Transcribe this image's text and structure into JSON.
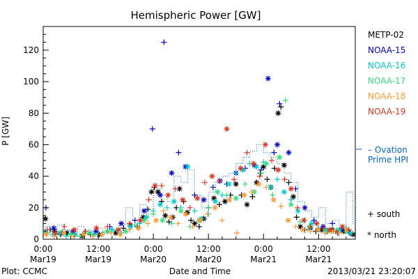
{
  "chart_data": {
    "type": "scatter",
    "title": "Hemispheric Power [GW]",
    "xlabel": "Date and Time",
    "ylabel": "P [GW]",
    "ylim": [
      0,
      135
    ],
    "xlim": [
      0,
      62
    ],
    "yticks": [
      0,
      20,
      40,
      60,
      80,
      100,
      120
    ],
    "xticks": [
      {
        "x": 0,
        "time": "0:00",
        "date": "Mar19"
      },
      {
        "x": 12,
        "time": "12:00",
        "date": "Mar19"
      },
      {
        "x": 24,
        "time": "0:00",
        "date": "Mar20"
      },
      {
        "x": 36,
        "time": "12:00",
        "date": "Mar20"
      },
      {
        "x": 48,
        "time": "0:00",
        "date": "Mar21"
      },
      {
        "x": 60,
        "time": "12:00",
        "date": "Mar21"
      }
    ],
    "legend_position": "right",
    "series": [
      {
        "name": "METP-02",
        "color": "#000000",
        "points": [
          [
            0.5,
            13
          ],
          [
            1.5,
            6
          ],
          [
            2.5,
            5
          ],
          [
            3.8,
            3
          ],
          [
            5.2,
            4
          ],
          [
            6.8,
            3
          ],
          [
            8.5,
            2
          ],
          [
            10.3,
            3
          ],
          [
            12.2,
            3
          ],
          [
            14.0,
            5
          ],
          [
            15.8,
            4
          ],
          [
            17.5,
            7
          ],
          [
            19.0,
            9
          ],
          [
            20.5,
            8
          ],
          [
            21.8,
            14
          ],
          [
            22.8,
            19
          ],
          [
            23.6,
            30
          ],
          [
            24.2,
            33
          ],
          [
            25.0,
            30
          ],
          [
            25.8,
            24
          ],
          [
            26.6,
            15
          ],
          [
            27.4,
            11
          ],
          [
            28.2,
            14
          ],
          [
            29.0,
            20
          ],
          [
            29.7,
            32
          ],
          [
            30.6,
            24
          ],
          [
            31.4,
            17
          ],
          [
            32.2,
            12
          ],
          [
            33.0,
            10
          ],
          [
            34.0,
            8
          ],
          [
            35.0,
            13
          ],
          [
            36.0,
            20
          ],
          [
            37.2,
            26
          ],
          [
            38.4,
            22
          ],
          [
            39.6,
            24
          ],
          [
            40.8,
            28
          ],
          [
            42.0,
            35
          ],
          [
            43.2,
            28
          ],
          [
            44.4,
            22
          ],
          [
            45.6,
            27
          ],
          [
            46.5,
            36
          ],
          [
            47.3,
            42
          ],
          [
            48.0,
            46
          ],
          [
            48.8,
            38
          ],
          [
            49.6,
            33
          ],
          [
            50.4,
            45
          ],
          [
            51.2,
            80
          ],
          [
            51.8,
            84
          ],
          [
            52.5,
            47
          ],
          [
            53.5,
            36
          ],
          [
            54.5,
            27
          ],
          [
            55.2,
            14
          ],
          [
            56.0,
            8
          ],
          [
            57.0,
            6
          ],
          [
            58.2,
            7
          ],
          [
            59.4,
            5
          ],
          [
            60.6,
            6
          ],
          [
            61.8,
            5
          ],
          [
            63.0,
            6
          ],
          [
            64.2,
            4
          ],
          [
            65.5,
            5
          ],
          [
            66.8,
            4
          ],
          [
            67.5,
            3
          ]
        ]
      },
      {
        "name": "NOAA-15",
        "color": "#0000cc",
        "points": [
          [
            0.6,
            20
          ],
          [
            2.3,
            7
          ],
          [
            4.0,
            4
          ],
          [
            6.5,
            5
          ],
          [
            9.0,
            4
          ],
          [
            11.5,
            5
          ],
          [
            14.5,
            8
          ],
          [
            17.0,
            10
          ],
          [
            20.0,
            12
          ],
          [
            22.0,
            18
          ],
          [
            23.8,
            70
          ],
          [
            25.5,
            28
          ],
          [
            26.3,
            125
          ],
          [
            28.0,
            42
          ],
          [
            29.5,
            55
          ],
          [
            31.0,
            46
          ],
          [
            33.0,
            28
          ],
          [
            35.0,
            25
          ],
          [
            37.0,
            33
          ],
          [
            38.5,
            37
          ],
          [
            40.0,
            35
          ],
          [
            42.0,
            42
          ],
          [
            44.0,
            45
          ],
          [
            46.0,
            47
          ],
          [
            47.5,
            44
          ],
          [
            49.0,
            102
          ],
          [
            50.3,
            55
          ],
          [
            51.0,
            60
          ],
          [
            51.5,
            86
          ],
          [
            53.5,
            55
          ],
          [
            55.0,
            32
          ],
          [
            57.0,
            20
          ],
          [
            59.0,
            12
          ],
          [
            61.0,
            8
          ],
          [
            63.0,
            10
          ],
          [
            65.0,
            6
          ],
          [
            66.5,
            5
          ]
        ]
      },
      {
        "name": "NOAA-16",
        "color": "#00cccc",
        "points": [
          [
            0.5,
            5
          ],
          [
            2.0,
            3
          ],
          [
            3.5,
            4
          ],
          [
            5.0,
            2
          ],
          [
            7.0,
            3
          ],
          [
            9.0,
            4
          ],
          [
            11.0,
            3
          ],
          [
            13.0,
            4
          ],
          [
            15.0,
            6
          ],
          [
            17.0,
            4
          ],
          [
            19.0,
            8
          ],
          [
            21.0,
            10
          ],
          [
            22.5,
            14
          ],
          [
            24.0,
            18
          ],
          [
            25.5,
            22
          ],
          [
            27.0,
            20
          ],
          [
            28.5,
            24
          ],
          [
            30.0,
            20
          ],
          [
            31.5,
            46
          ],
          [
            33.0,
            18
          ],
          [
            34.5,
            13
          ],
          [
            36.0,
            16
          ],
          [
            37.5,
            24
          ],
          [
            39.0,
            28
          ],
          [
            40.5,
            35
          ],
          [
            42.0,
            42
          ],
          [
            43.5,
            44
          ],
          [
            45.0,
            48
          ],
          [
            46.5,
            46
          ],
          [
            48.0,
            49
          ],
          [
            49.5,
            33
          ],
          [
            51.0,
            38
          ],
          [
            52.5,
            30
          ],
          [
            54.0,
            25
          ],
          [
            55.5,
            18
          ],
          [
            57.0,
            12
          ],
          [
            58.5,
            10
          ],
          [
            60.0,
            7
          ],
          [
            61.5,
            6
          ],
          [
            63.0,
            5
          ],
          [
            64.5,
            6
          ],
          [
            66.0,
            7
          ],
          [
            67.0,
            4
          ]
        ]
      },
      {
        "name": "NOAA-17",
        "color": "#33dd77",
        "points": [
          [
            0.8,
            4
          ],
          [
            2.5,
            3
          ],
          [
            4.2,
            5
          ],
          [
            6.0,
            3
          ],
          [
            8.0,
            2
          ],
          [
            10.0,
            4
          ],
          [
            12.0,
            3
          ],
          [
            14.0,
            5
          ],
          [
            16.0,
            6
          ],
          [
            18.0,
            5
          ],
          [
            20.0,
            9
          ],
          [
            22.0,
            12
          ],
          [
            24.0,
            16
          ],
          [
            26.0,
            12
          ],
          [
            28.0,
            10
          ],
          [
            30.0,
            18
          ],
          [
            32.0,
            8
          ],
          [
            34.0,
            12
          ],
          [
            36.0,
            20
          ],
          [
            38.0,
            30
          ],
          [
            40.0,
            28
          ],
          [
            42.0,
            26
          ],
          [
            44.0,
            35
          ],
          [
            46.0,
            30
          ],
          [
            47.5,
            42
          ],
          [
            48.6,
            48
          ],
          [
            50.0,
            28
          ],
          [
            51.5,
            52
          ],
          [
            52.8,
            88
          ],
          [
            54.0,
            22
          ],
          [
            56.0,
            11
          ],
          [
            58.0,
            8
          ],
          [
            60.0,
            6
          ],
          [
            62.0,
            5
          ],
          [
            64.0,
            6
          ],
          [
            66.0,
            5
          ]
        ]
      },
      {
        "name": "NOAA-18",
        "color": "#ff9933",
        "points": [
          [
            0.7,
            3
          ],
          [
            2.4,
            2
          ],
          [
            4.4,
            4
          ],
          [
            6.6,
            2
          ],
          [
            8.8,
            3
          ],
          [
            10.8,
            2
          ],
          [
            12.8,
            3
          ],
          [
            14.8,
            4
          ],
          [
            16.8,
            3
          ],
          [
            18.8,
            6
          ],
          [
            20.8,
            7
          ],
          [
            22.8,
            10
          ],
          [
            24.6,
            12
          ],
          [
            26.2,
            18
          ],
          [
            27.8,
            14
          ],
          [
            29.4,
            10
          ],
          [
            31.0,
            16
          ],
          [
            32.6,
            8
          ],
          [
            34.2,
            12
          ],
          [
            35.8,
            16
          ],
          [
            37.4,
            20
          ],
          [
            39.0,
            12
          ],
          [
            40.6,
            25
          ],
          [
            42.2,
            4
          ],
          [
            43.8,
            28
          ],
          [
            45.4,
            30
          ],
          [
            47.0,
            35
          ],
          [
            48.6,
            33
          ],
          [
            50.2,
            25
          ],
          [
            51.8,
            21
          ],
          [
            53.4,
            12
          ],
          [
            55.0,
            8
          ],
          [
            56.6,
            6
          ],
          [
            58.2,
            5
          ],
          [
            59.8,
            6
          ],
          [
            61.4,
            4
          ],
          [
            63.0,
            5
          ],
          [
            64.6,
            4
          ],
          [
            66.2,
            6
          ]
        ]
      },
      {
        "name": "NOAA-19",
        "color": "#dd3322",
        "points": [
          [
            0.9,
            6
          ],
          [
            2.7,
            4
          ],
          [
            4.6,
            8
          ],
          [
            6.8,
            6
          ],
          [
            9.2,
            5
          ],
          [
            11.6,
            7
          ],
          [
            14.0,
            8
          ],
          [
            16.4,
            6
          ],
          [
            18.8,
            10
          ],
          [
            21.2,
            12
          ],
          [
            23.0,
            25
          ],
          [
            24.4,
            34
          ],
          [
            25.8,
            34
          ],
          [
            27.2,
            28
          ],
          [
            28.8,
            32
          ],
          [
            30.4,
            25
          ],
          [
            32.0,
            20
          ],
          [
            33.6,
            26
          ],
          [
            35.2,
            36
          ],
          [
            36.8,
            40
          ],
          [
            38.4,
            37
          ],
          [
            40.0,
            70
          ],
          [
            41.6,
            38
          ],
          [
            43.0,
            45
          ],
          [
            44.4,
            55
          ],
          [
            45.8,
            48
          ],
          [
            47.2,
            40
          ],
          [
            48.4,
            60
          ],
          [
            49.8,
            50
          ],
          [
            51.2,
            44
          ],
          [
            52.6,
            38
          ],
          [
            54.0,
            32
          ],
          [
            55.4,
            20
          ],
          [
            56.8,
            12
          ],
          [
            58.2,
            8
          ],
          [
            59.6,
            10
          ],
          [
            61.0,
            7
          ],
          [
            62.4,
            6
          ],
          [
            63.8,
            5
          ],
          [
            65.2,
            8
          ],
          [
            66.6,
            6
          ]
        ]
      },
      {
        "name": "Ovation Prime HPI",
        "color": "#0066cc",
        "step": [
          [
            0,
            8
          ],
          [
            1.5,
            5
          ],
          [
            3,
            9
          ],
          [
            4.5,
            6
          ],
          [
            6,
            4
          ],
          [
            7.5,
            8
          ],
          [
            9,
            6
          ],
          [
            10.5,
            5
          ],
          [
            12,
            7
          ],
          [
            13.5,
            8
          ],
          [
            15,
            6
          ],
          [
            16.5,
            9
          ],
          [
            18,
            20
          ],
          [
            19.5,
            12
          ],
          [
            21,
            22
          ],
          [
            22.5,
            16
          ],
          [
            24,
            32
          ],
          [
            25.5,
            28
          ],
          [
            27,
            24
          ],
          [
            28.5,
            40
          ],
          [
            30,
            36
          ],
          [
            31.5,
            44
          ],
          [
            33,
            28
          ],
          [
            34.5,
            20
          ],
          [
            36,
            30
          ],
          [
            37.5,
            36
          ],
          [
            39,
            40
          ],
          [
            40.5,
            42
          ],
          [
            42,
            48
          ],
          [
            43.5,
            52
          ],
          [
            45,
            56
          ],
          [
            46.5,
            60
          ],
          [
            48,
            55
          ],
          [
            49.5,
            52
          ],
          [
            51,
            48
          ],
          [
            52.5,
            42
          ],
          [
            54,
            36
          ],
          [
            55.5,
            24
          ],
          [
            57,
            18
          ],
          [
            58.5,
            14
          ],
          [
            60,
            20
          ],
          [
            61.5,
            10
          ],
          [
            63,
            12
          ],
          [
            64.5,
            8
          ],
          [
            66,
            30
          ],
          [
            67.5,
            10
          ]
        ]
      }
    ],
    "ovation_legend": [
      "– Ovation",
      "Prime HPI"
    ],
    "symbol_legend": [
      {
        "symbol": "+",
        "label": "south"
      },
      {
        "symbol": "*",
        "label": "north"
      }
    ]
  },
  "footer": {
    "left": "Plot: CCMC",
    "timestamp": "2013/03/21 23:20:07"
  }
}
